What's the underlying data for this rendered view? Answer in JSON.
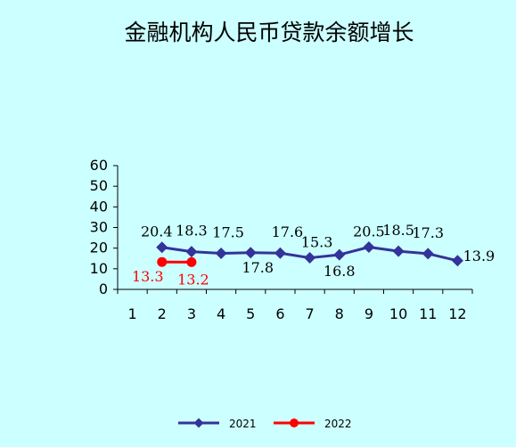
{
  "chart_data": {
    "type": "line",
    "title": "金融机构人民币贷款余额增长",
    "xlabel": "",
    "ylabel": "",
    "x": [
      "1",
      "2",
      "3",
      "4",
      "5",
      "6",
      "7",
      "8",
      "9",
      "10",
      "11",
      "12"
    ],
    "ylim": [
      0,
      60
    ],
    "yticks": [
      "0",
      "10",
      "20",
      "30",
      "40",
      "50",
      "60"
    ],
    "grid": false,
    "legend": "bottom",
    "series": [
      {
        "name": "2021",
        "color": "#333399",
        "marker": "diamond",
        "values": [
          null,
          20.4,
          18.3,
          17.5,
          17.8,
          17.6,
          15.3,
          16.8,
          20.5,
          18.5,
          17.3,
          13.9
        ],
        "labels": [
          "",
          "20.4",
          "18.3",
          "17.5",
          "17.8",
          "17.6",
          "15.3",
          "16.8",
          "20.5",
          "18.5",
          "17.3",
          "13.9"
        ]
      },
      {
        "name": "2022",
        "color": "#ff0000",
        "marker": "circle",
        "values": [
          null,
          13.3,
          13.2,
          null,
          null,
          null,
          null,
          null,
          null,
          null,
          null,
          null
        ],
        "labels": [
          "",
          "13.3",
          "13.2",
          "",
          "",
          "",
          "",
          "",
          "",
          "",
          "",
          ""
        ]
      }
    ]
  }
}
